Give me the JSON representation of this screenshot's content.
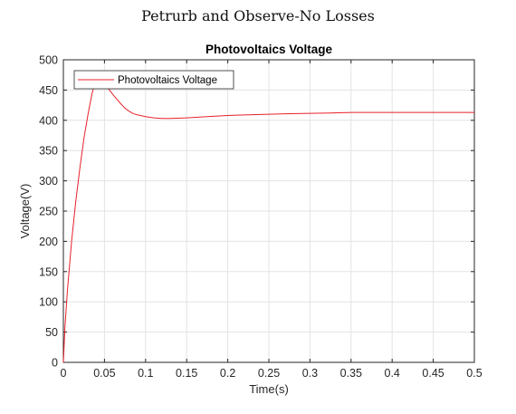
{
  "figure": {
    "suptitle": "Petrurb and Observe-No Losses"
  },
  "chart_data": {
    "type": "line",
    "title": "Photovoltaics Voltage",
    "xlabel": "Time(s)",
    "ylabel": "Voltage(V)",
    "xlim": [
      0,
      0.5
    ],
    "ylim": [
      0,
      500
    ],
    "xticks": [
      "0",
      "0.05",
      "0.1",
      "0.15",
      "0.2",
      "0.25",
      "0.3",
      "0.35",
      "0.4",
      "0.45",
      "0.5"
    ],
    "yticks": [
      "0",
      "50",
      "100",
      "150",
      "200",
      "250",
      "300",
      "350",
      "400",
      "450",
      "500"
    ],
    "grid": true,
    "legend_position": "top-left",
    "series": [
      {
        "name": "Photovoltaics Voltage",
        "color": "#e8212a",
        "x": [
          0,
          0.002,
          0.005,
          0.01,
          0.015,
          0.02,
          0.025,
          0.03,
          0.035,
          0.04,
          0.043,
          0.047,
          0.05,
          0.055,
          0.06,
          0.065,
          0.07,
          0.075,
          0.08,
          0.085,
          0.09,
          0.1,
          0.11,
          0.12,
          0.13,
          0.15,
          0.175,
          0.2,
          0.225,
          0.25,
          0.275,
          0.3,
          0.325,
          0.35,
          0.375,
          0.4,
          0.425,
          0.45,
          0.475,
          0.5
        ],
        "y": [
          0,
          60,
          120,
          200,
          265,
          320,
          370,
          410,
          445,
          468,
          475,
          472,
          465,
          452,
          443,
          435,
          427,
          420,
          415,
          411,
          409,
          406,
          404,
          403,
          403,
          404,
          406,
          408,
          409,
          410,
          411,
          411.5,
          412,
          413,
          413,
          413,
          413,
          413,
          413,
          413
        ]
      }
    ]
  }
}
